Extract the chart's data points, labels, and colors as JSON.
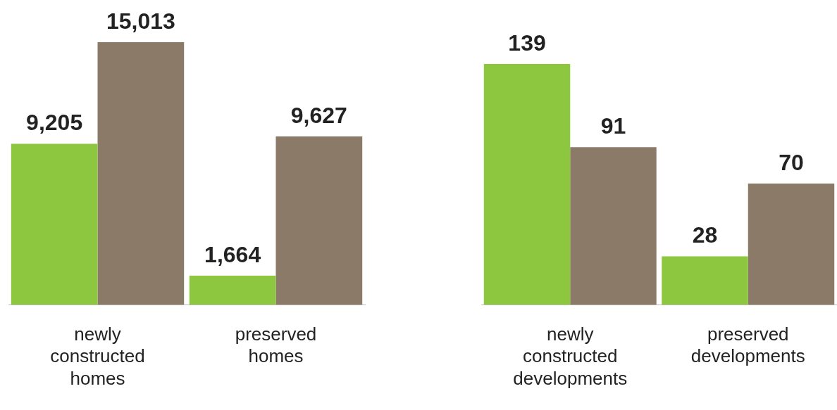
{
  "chart_data": [
    {
      "type": "bar",
      "categories": [
        "newly constructed homes",
        "preserved homes"
      ],
      "series": [
        {
          "color": "#8dc63f",
          "values": [
            9205,
            1664
          ],
          "value_labels": [
            "9,205",
            "1,664"
          ]
        },
        {
          "color": "#8b7a68",
          "values": [
            15013,
            9627
          ],
          "value_labels": [
            "15,013",
            "9,627"
          ]
        }
      ]
    },
    {
      "type": "bar",
      "categories": [
        "newly constructed developments",
        "preserved developments"
      ],
      "data_labels": true,
      "series": [
        {
          "color": "#8dc63f",
          "values": [
            139,
            28
          ]
        },
        {
          "color": "#8b7a68",
          "values": [
            91,
            70
          ]
        }
      ]
    }
  ]
}
